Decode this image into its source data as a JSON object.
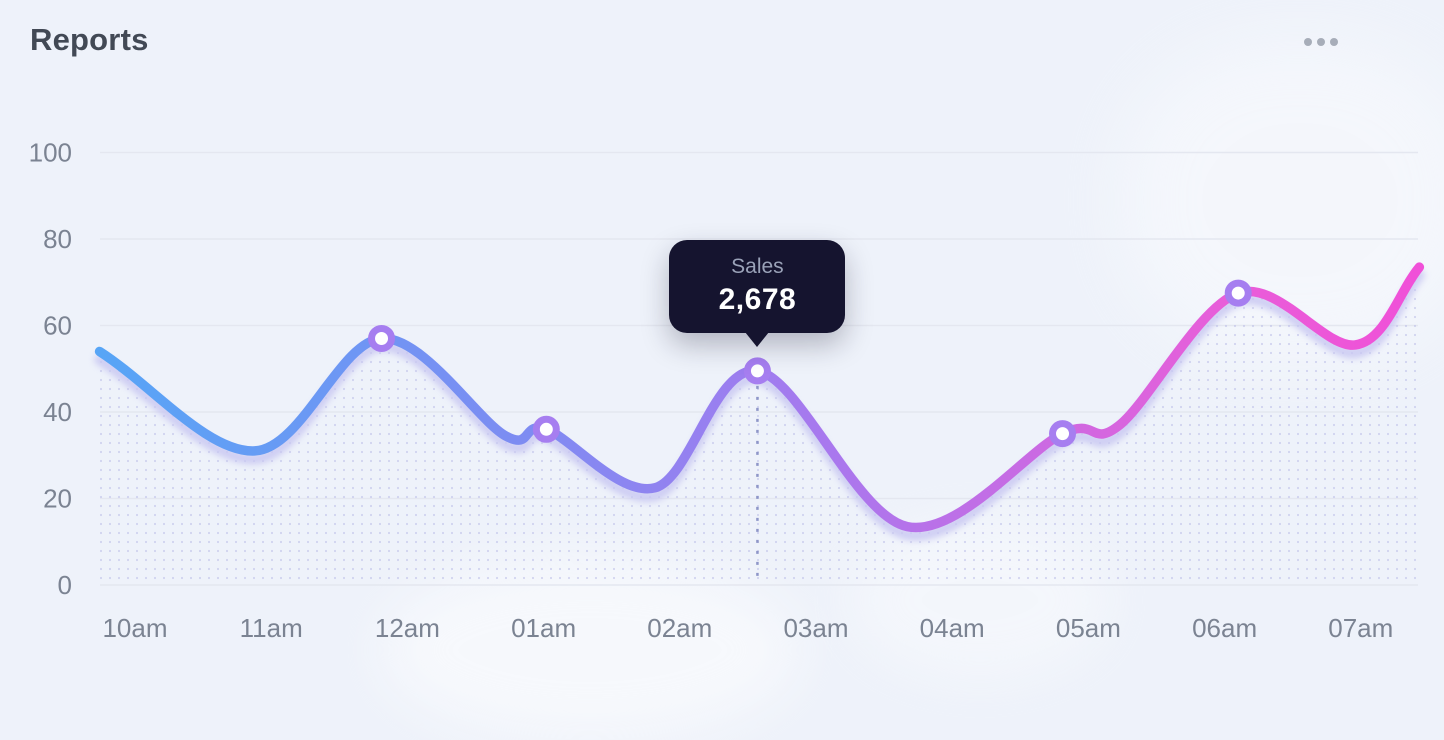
{
  "header": {
    "title": "Reports",
    "menu_icon": "ellipsis-menu-icon"
  },
  "tooltip": {
    "label": "Sales",
    "value": "2,678"
  },
  "colors": {
    "background": "#eef2fa",
    "title_text": "#424955",
    "axis_label": "#7b8392",
    "grid_line": "#e4e7f0",
    "tooltip_bg": "#15142f",
    "tooltip_label": "#9aa2b8",
    "tooltip_value": "#ffffff",
    "marker_ring": "#a67ef0",
    "marker_fill": "#ffffff",
    "line_shadow": "#c9c8f2",
    "area_dots": "#b7b9e6",
    "dashed_guide": "#8e96c8",
    "menu_dots": "#a7adb9"
  },
  "chart_data": {
    "type": "line",
    "title": "Reports",
    "series_name": "Sales",
    "categories": [
      "10am",
      "11am",
      "12am",
      "01am",
      "02am",
      "03am",
      "04am",
      "05am",
      "06am",
      "07am"
    ],
    "y_ticks": [
      100,
      80,
      60,
      40,
      20,
      0
    ],
    "ylim": [
      0,
      100
    ],
    "xlabel": "",
    "ylabel": "",
    "grid": "horizontal",
    "legend_position": "none",
    "line_gradient": [
      "#57a5f6",
      "#7f8bf2",
      "#a878ee",
      "#e85ed9",
      "#f050d8"
    ],
    "points": [
      {
        "x": -0.26,
        "v": 54
      },
      {
        "x": 0.88,
        "v": 31
      },
      {
        "x": 1.81,
        "v": 57,
        "marker": true
      },
      {
        "x": 2.72,
        "v": 34.5
      },
      {
        "x": 3.02,
        "v": 36,
        "marker": true
      },
      {
        "x": 3.82,
        "v": 22.5
      },
      {
        "x": 4.57,
        "v": 49.5,
        "marker": true,
        "highlight": true
      },
      {
        "x": 5.67,
        "v": 13.5
      },
      {
        "x": 6.81,
        "v": 35,
        "marker": true
      },
      {
        "x": 7.23,
        "v": 37
      },
      {
        "x": 8.1,
        "v": 67.5,
        "marker": true
      },
      {
        "x": 8.96,
        "v": 55.5
      },
      {
        "x": 9.43,
        "v": 73.5
      }
    ],
    "highlight": {
      "series": "Sales",
      "display_value": "2,678",
      "value_on_axis": 49.5
    }
  }
}
